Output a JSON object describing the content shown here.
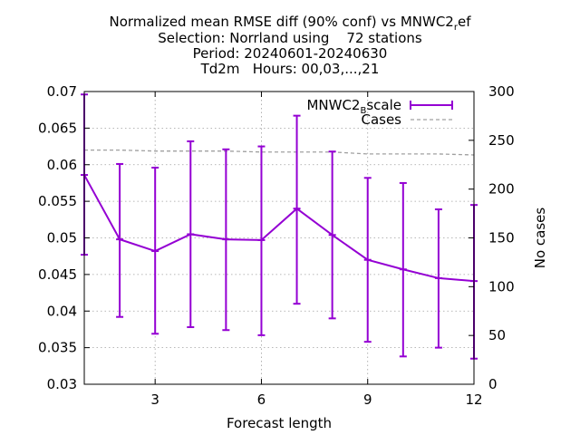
{
  "chart_data": {
    "type": "line",
    "title_lines": [
      "Normalized mean RMSE diff (90% conf) vs MNWC2_ref",
      "Selection: Norrland using    72 stations",
      "Period: 20240601-20240630",
      "Td2m   Hours: 00,03,...,21"
    ],
    "title_parts": {
      "line1_main": "Normalized mean RMSE diff (90% conf) vs MNWC2",
      "line1_sub": "r",
      "line1_tail": "ef"
    },
    "xlabel": "Forecast length",
    "ylabel_left": "",
    "ylabel_right": "No cases",
    "xlim": [
      1,
      12
    ],
    "ylim_left": [
      0.03,
      0.07
    ],
    "ylim_right": [
      0,
      300
    ],
    "x_ticks": [
      3,
      6,
      9,
      12
    ],
    "x_tick_labels": [
      "3",
      "6",
      "9",
      "12"
    ],
    "y_left_ticks": [
      0.03,
      0.035,
      0.04,
      0.045,
      0.05,
      0.055,
      0.06,
      0.065,
      0.07
    ],
    "y_left_tick_labels": [
      "0.03",
      "0.035",
      "0.04",
      "0.045",
      "0.05",
      "0.055",
      "0.06",
      "0.065",
      "0.07"
    ],
    "y_right_ticks": [
      0,
      50,
      100,
      150,
      200,
      250,
      300
    ],
    "y_right_tick_labels": [
      "0",
      "50",
      "100",
      "150",
      "200",
      "250",
      "300"
    ],
    "grid": true,
    "legend_position": "top-right",
    "series": [
      {
        "name": "MNWC2_Bscale",
        "legend_main": "MNWC2",
        "legend_sub": "B",
        "legend_tail": "scale",
        "axis": "left",
        "style": "line-errorbars",
        "color": "#9400d3",
        "x": [
          1,
          2,
          3,
          4,
          5,
          6,
          7,
          8,
          9,
          10,
          11,
          12
        ],
        "y": [
          0.0586,
          0.0498,
          0.0482,
          0.0505,
          0.0498,
          0.0497,
          0.054,
          0.0504,
          0.047,
          0.0457,
          0.0445,
          0.0441
        ],
        "y_low": [
          0.0477,
          0.0392,
          0.0369,
          0.0378,
          0.0374,
          0.0367,
          0.041,
          0.039,
          0.0358,
          0.0338,
          0.035,
          0.0335
        ],
        "y_high": [
          0.0696,
          0.0601,
          0.0596,
          0.0632,
          0.0621,
          0.0625,
          0.0667,
          0.0618,
          0.0582,
          0.0575,
          0.0539,
          0.0545
        ]
      },
      {
        "name": "Cases",
        "axis": "right",
        "style": "dashed",
        "color": "#a0a0a0",
        "x": [
          1,
          2,
          3,
          4,
          5,
          6,
          7,
          8,
          9,
          10,
          11,
          12
        ],
        "y": [
          240,
          240,
          239,
          239,
          239,
          238,
          238,
          238,
          236,
          236,
          236,
          235
        ]
      }
    ]
  }
}
